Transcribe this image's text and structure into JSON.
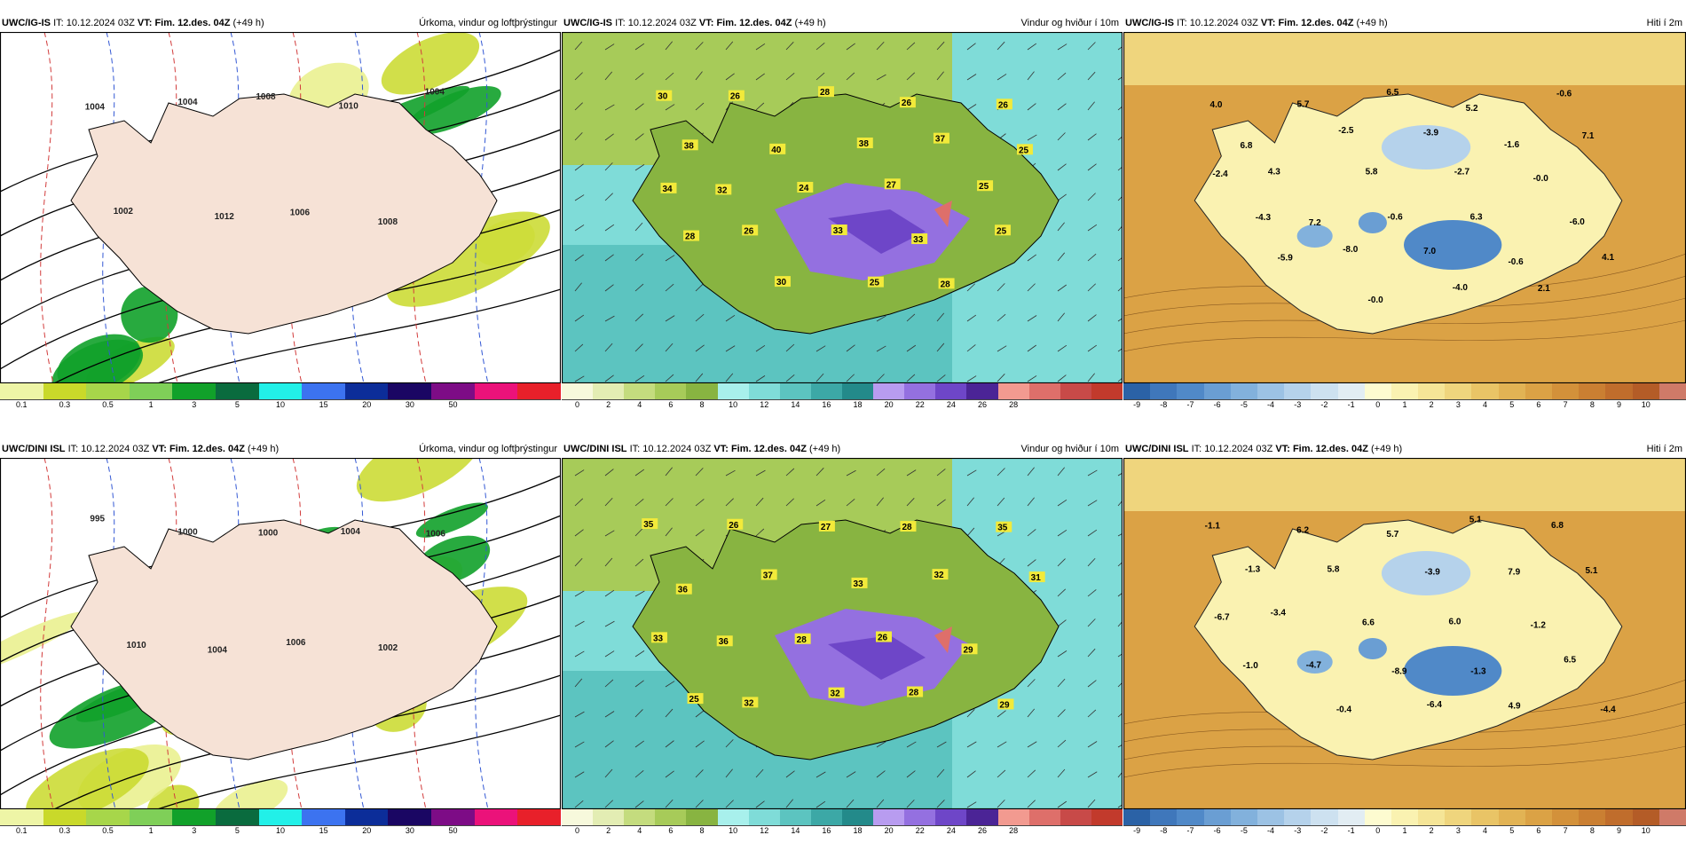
{
  "panels": [
    {
      "model": "UWC/IG-IS",
      "it": "10.12.2024 03Z",
      "vt": "Fim. 12.des. 04Z",
      "lead": "(+49 h)",
      "var": "Úrkoma, vindur og loftþrýstingur",
      "scale": "precip"
    },
    {
      "model": "UWC/IG-IS",
      "it": "10.12.2024 03Z",
      "vt": "Fim. 12.des. 04Z",
      "lead": "(+49 h)",
      "var": "Vindur og hviður í 10m",
      "scale": "wind"
    },
    {
      "model": "UWC/IG-IS",
      "it": "10.12.2024 03Z",
      "vt": "Fim. 12.des. 04Z",
      "lead": "(+49 h)",
      "var": "Hiti í 2m",
      "scale": "temp"
    },
    {
      "model": "UWC/DINI ISL",
      "it": "10.12.2024 03Z",
      "vt": "Fim. 12.des. 04Z",
      "lead": "(+49 h)",
      "var": "Úrkoma, vindur og loftþrýstingur",
      "scale": "precip"
    },
    {
      "model": "UWC/DINI ISL",
      "it": "10.12.2024 03Z",
      "vt": "Fim. 12.des. 04Z",
      "lead": "(+49 h)",
      "var": "Vindur og hviður í 10m",
      "scale": "wind"
    },
    {
      "model": "UWC/DINI ISL",
      "it": "10.12.2024 03Z",
      "vt": "Fim. 12.des. 04Z",
      "lead": "(+49 h)",
      "var": "Hiti í 2m",
      "scale": "temp"
    }
  ],
  "labels": {
    "it_prefix": "IT:",
    "vt_prefix": "VT:"
  },
  "scales": {
    "precip": {
      "ticks": [
        "0.1",
        "0.3",
        "0.5",
        "1",
        "3",
        "5",
        "10",
        "15",
        "20",
        "30",
        "50"
      ],
      "colors": [
        "#eef5a6",
        "#c9d92a",
        "#a7d64a",
        "#7fcf58",
        "#11a12a",
        "#0a6b3e",
        "#22f0e8",
        "#3c73f0",
        "#0c2d99",
        "#1a0663",
        "#7d0c86",
        "#eb127a",
        "#e8202a"
      ]
    },
    "wind": {
      "ticks": [
        "0",
        "2",
        "4",
        "6",
        "8",
        "10",
        "12",
        "14",
        "16",
        "18",
        "20",
        "22",
        "24",
        "26",
        "28"
      ],
      "colors": [
        "#f7f9dc",
        "#e3edb3",
        "#c4dc7e",
        "#a7cb59",
        "#88b441",
        "#a8f0ec",
        "#7fdcd8",
        "#5cc4c0",
        "#3ca8a6",
        "#238a8a",
        "#b89cf0",
        "#9470e0",
        "#6e46c8",
        "#4b2496",
        "#f29a90",
        "#de6f6a",
        "#c84a48",
        "#c23a2c"
      ]
    },
    "temp": {
      "ticks": [
        "-9",
        "-8",
        "-7",
        "-6",
        "-5",
        "-4",
        "-3",
        "-2",
        "-1",
        "0",
        "1",
        "2",
        "3",
        "4",
        "5",
        "6",
        "7",
        "8",
        "9",
        "10"
      ],
      "colors": [
        "#2b62a6",
        "#3f77bb",
        "#5089c8",
        "#6a9ed3",
        "#82b1dc",
        "#9cc2e4",
        "#b5d2eb",
        "#cde1f0",
        "#e2edf3",
        "#fdfbd0",
        "#faf2b1",
        "#f5e597",
        "#efd57d",
        "#e9c466",
        "#e2b354",
        "#dba245",
        "#d3913a",
        "#ca7f32",
        "#c06d2c",
        "#b45c27",
        "#cf7a68"
      ]
    }
  },
  "map_labels": {
    "wind_top": [
      "30",
      "26",
      "28",
      "26",
      "26",
      "38",
      "40",
      "38",
      "37",
      "25",
      "32",
      "24",
      "27",
      "25",
      "34",
      "26",
      "33",
      "33",
      "25",
      "28",
      "30",
      "25",
      "28"
    ],
    "wind_bottom": [
      "35",
      "26",
      "27",
      "28",
      "35",
      "36",
      "37",
      "33",
      "32",
      "31",
      "36",
      "28",
      "26",
      "29",
      "33",
      "32",
      "32",
      "28",
      "29",
      "25"
    ],
    "temp_top": [
      "4.0",
      "5.7",
      "6.5",
      "5.2",
      "-0.6",
      "6.8",
      "-2.5",
      "-3.9",
      "-1.6",
      "7.1",
      "4.3",
      "5.8",
      "-2.7",
      "-0.0",
      "-2.4",
      "7.2",
      "-0.6",
      "6.3",
      "-6.0",
      "-4.3",
      "-8.0",
      "7.0",
      "-0.6",
      "4.1",
      "-5.9",
      "-0.0",
      "-4.0",
      "2.1"
    ],
    "temp_bottom": [
      "-1.1",
      "6.2",
      "5.7",
      "5.1",
      "6.8",
      "-1.3",
      "5.8",
      "-3.9",
      "7.9",
      "5.1",
      "-3.4",
      "6.6",
      "6.0",
      "-1.2",
      "-6.7",
      "-4.7",
      "-8.9",
      "-1.3",
      "6.5",
      "-1.0",
      "-0.4",
      "-6.4",
      "4.9",
      "-4.4"
    ],
    "precip_top": [
      "1004",
      "1004",
      "1008",
      "1010",
      "1004",
      "1002",
      "1012",
      "1006",
      "1008"
    ],
    "precip_bottom": [
      "995",
      "1000",
      "1000",
      "1004",
      "1006",
      "1010",
      "1004",
      "1006",
      "1002"
    ]
  }
}
